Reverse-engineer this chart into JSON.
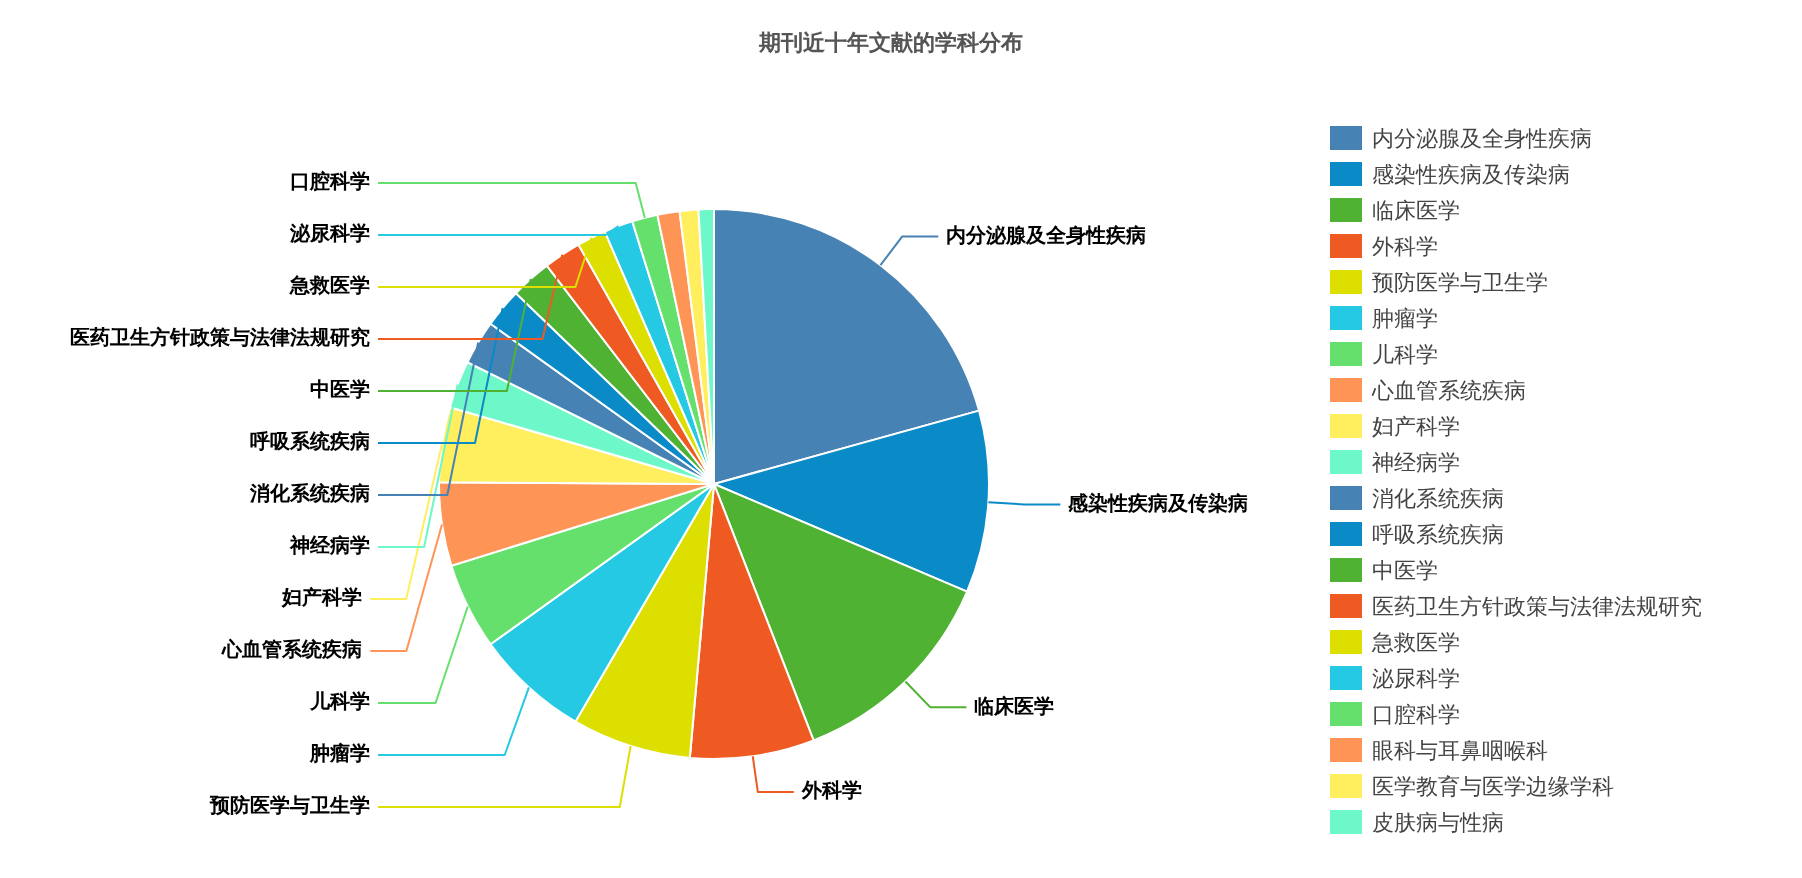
{
  "chart_data": {
    "type": "pie",
    "title": "期刊近十年文献的学科分布",
    "categories": [
      "内分泌腺及全身性疾病",
      "感染性疾病及传染病",
      "临床医学",
      "外科学",
      "预防医学与卫生学",
      "肿瘤学",
      "儿科学",
      "心血管系统疾病",
      "妇产科学",
      "神经病学",
      "消化系统疾病",
      "呼吸系统疾病",
      "中医学",
      "医药卫生方针政策与法律法规研究",
      "急救医学",
      "泌尿科学",
      "口腔科学",
      "眼科与耳鼻咽喉科",
      "医学教育与医学边缘学科",
      "皮肤病与性病"
    ],
    "values": [
      20.7,
      10.7,
      12.7,
      7.3,
      7.0,
      6.7,
      5.1,
      4.9,
      4.4,
      2.8,
      2.6,
      2.3,
      2.4,
      2.2,
      1.7,
      1.7,
      1.5,
      1.3,
      1.1,
      0.9
    ],
    "colors": [
      "#4682b4",
      "#0a8ac6",
      "#4fb233",
      "#ee5a22",
      "#dcdf00",
      "#26c9e3",
      "#66e06c",
      "#ff9457",
      "#ffee5e",
      "#6ef7c8",
      "#4682b4",
      "#0a8ac6",
      "#4fb233",
      "#ee5a22",
      "#dcdf00",
      "#26c9e3",
      "#66e06c",
      "#ff9457",
      "#ffee5e",
      "#6ef7c8"
    ],
    "legend": "right"
  }
}
